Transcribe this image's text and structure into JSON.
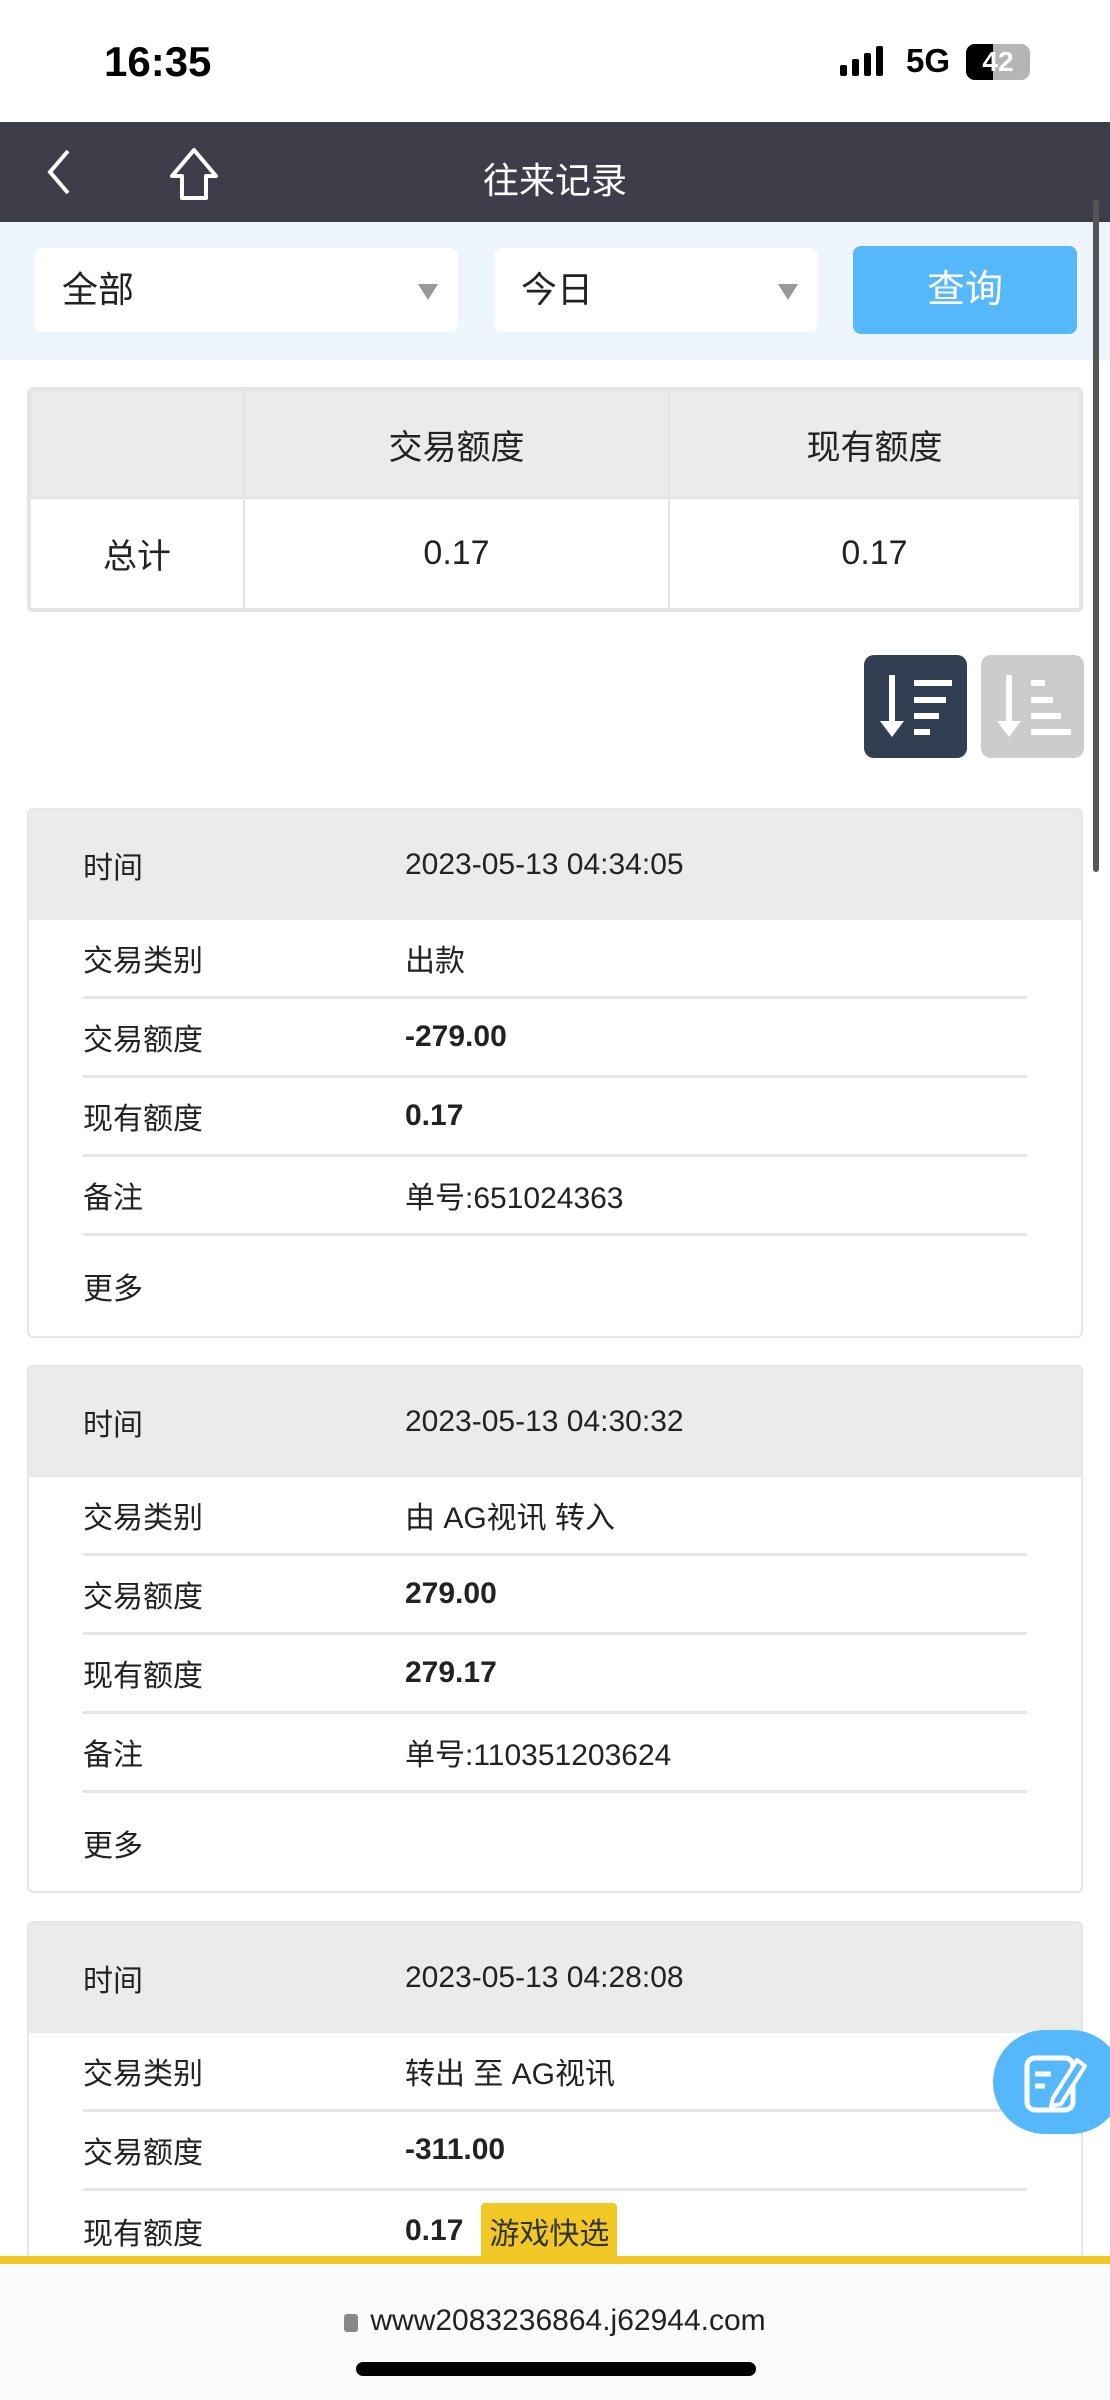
{
  "status_bar": {
    "time": "16:35",
    "network": "5G",
    "battery": "42"
  },
  "nav": {
    "title": "往来记录"
  },
  "filter": {
    "type_select": "全部",
    "date_select": "今日",
    "query_button": "查询"
  },
  "summary": {
    "headers": [
      "",
      "交易额度",
      "现有额度"
    ],
    "row_label": "总计",
    "trade_amount": "0.17",
    "balance": "0.17"
  },
  "records": [
    {
      "time_label": "时间",
      "time": "2023-05-13 04:34:05",
      "rows": [
        {
          "label": "交易类别",
          "value": "出款"
        },
        {
          "label": "交易额度",
          "value": "-279.00"
        },
        {
          "label": "现有额度",
          "value": "0.17"
        },
        {
          "label": "备注",
          "value": "单号:651024363"
        }
      ],
      "more": "更多"
    },
    {
      "time_label": "时间",
      "time": "2023-05-13 04:30:32",
      "rows": [
        {
          "label": "交易类别",
          "value": "由 AG视讯 转入"
        },
        {
          "label": "交易额度",
          "value": "279.00"
        },
        {
          "label": "现有额度",
          "value": "279.17"
        },
        {
          "label": "备注",
          "value": "单号:110351203624"
        }
      ],
      "more": "更多"
    },
    {
      "time_label": "时间",
      "time": "2023-05-13 04:28:08",
      "rows": [
        {
          "label": "交易类别",
          "value": "转出 至 AG视讯"
        },
        {
          "label": "交易额度",
          "value": "-311.00"
        },
        {
          "label": "现有额度",
          "value": "0.17"
        }
      ]
    }
  ],
  "quick_tag": "游戏快选",
  "browser": {
    "url": "www2083236864.j62944.com"
  },
  "colors": {
    "nav": "#3e3e4a",
    "accent": "#55b8fb",
    "tag": "#f2c826",
    "sort_active": "#323e52",
    "sort_inactive": "#cccccc"
  }
}
